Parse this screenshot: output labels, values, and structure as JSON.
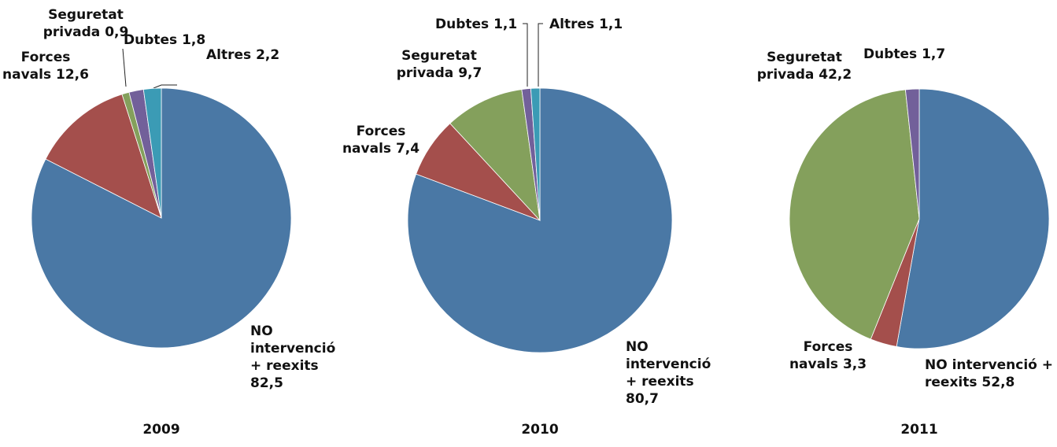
{
  "chart_data": [
    {
      "type": "pie",
      "title": "2009",
      "categories": [
        "NO intervenció + reexits",
        "Forces navals",
        "Seguretat privada",
        "Dubtes",
        "Altres"
      ],
      "values": [
        82.5,
        12.6,
        0.9,
        1.8,
        2.2
      ],
      "value_labels": [
        "82,5",
        "12,6",
        "0,9",
        "1,8",
        "2,2"
      ],
      "colors": [
        "#4a78a5",
        "#a44f4c",
        "#84a05c",
        "#72609a",
        "#3b9bb5"
      ]
    },
    {
      "type": "pie",
      "title": "2010",
      "categories": [
        "NO intervenció + reexits",
        "Forces navals",
        "Seguretat privada",
        "Dubtes",
        "Altres"
      ],
      "values": [
        80.7,
        7.4,
        9.7,
        1.1,
        1.1
      ],
      "value_labels": [
        "80,7",
        "7,4",
        "9,7",
        "1,1",
        "1,1"
      ],
      "colors": [
        "#4a78a5",
        "#a44f4c",
        "#84a05c",
        "#72609a",
        "#3b9bb5"
      ]
    },
    {
      "type": "pie",
      "title": "2011",
      "categories": [
        "NO intervenció + reexits",
        "Forces navals",
        "Seguretat privada",
        "Dubtes"
      ],
      "values": [
        52.8,
        3.3,
        42.2,
        1.7
      ],
      "value_labels": [
        "52,8",
        "3,3",
        "42,2",
        "1,7"
      ],
      "colors": [
        "#4a78a5",
        "#a44f4c",
        "#84a05c",
        "#72609a"
      ]
    }
  ]
}
